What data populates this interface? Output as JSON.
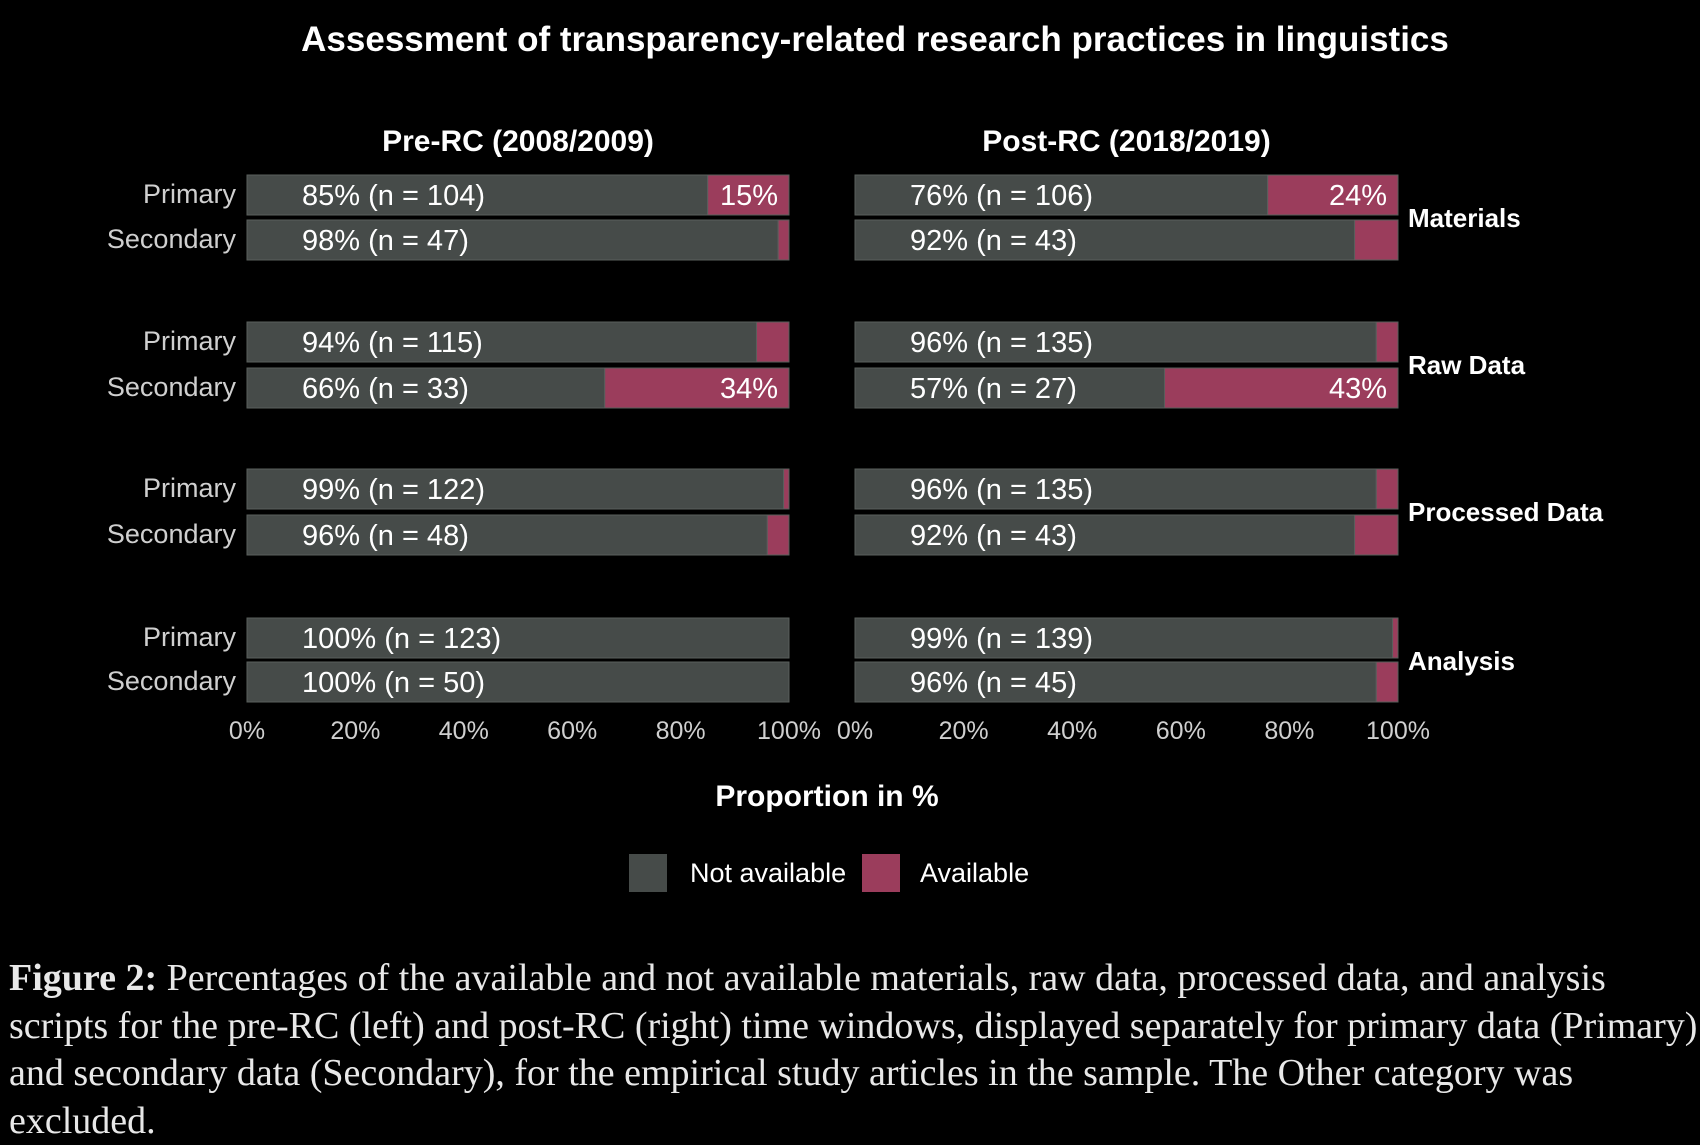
{
  "chart_data": {
    "type": "bar",
    "orientation": "horizontal-stacked-100",
    "title": "Assessment of transparency-related research practices in linguistics",
    "xlabel": "Proportion in %",
    "xlim": [
      0,
      100
    ],
    "xticks": [
      "0%",
      "20%",
      "40%",
      "60%",
      "80%",
      "100%"
    ],
    "legend": {
      "position": "bottom",
      "entries": [
        "Not available",
        "Available"
      ]
    },
    "colors": {
      "Not available": "#464b49",
      "Available": "#9b3d5c"
    },
    "facets": [
      "Materials",
      "Raw Data",
      "Processed Data",
      "Analysis"
    ],
    "rows": [
      "Primary",
      "Secondary"
    ],
    "panels": [
      {
        "title": "Pre-RC (2008/2009)",
        "data": [
          {
            "facet": "Materials",
            "row": "Primary",
            "not_available": 85,
            "available": 15,
            "n": 104,
            "label": "85% (n = 104)",
            "avail_label": "15%"
          },
          {
            "facet": "Materials",
            "row": "Secondary",
            "not_available": 98,
            "available": 2,
            "n": 47,
            "label": "98% (n = 47)",
            "avail_label": ""
          },
          {
            "facet": "Raw Data",
            "row": "Primary",
            "not_available": 94,
            "available": 6,
            "n": 115,
            "label": "94% (n = 115)",
            "avail_label": ""
          },
          {
            "facet": "Raw Data",
            "row": "Secondary",
            "not_available": 66,
            "available": 34,
            "n": 33,
            "label": "66% (n = 33)",
            "avail_label": "34%"
          },
          {
            "facet": "Processed Data",
            "row": "Primary",
            "not_available": 99,
            "available": 1,
            "n": 122,
            "label": "99% (n = 122)",
            "avail_label": ""
          },
          {
            "facet": "Processed Data",
            "row": "Secondary",
            "not_available": 96,
            "available": 4,
            "n": 48,
            "label": "96% (n = 48)",
            "avail_label": ""
          },
          {
            "facet": "Analysis",
            "row": "Primary",
            "not_available": 100,
            "available": 0,
            "n": 123,
            "label": "100% (n = 123)",
            "avail_label": ""
          },
          {
            "facet": "Analysis",
            "row": "Secondary",
            "not_available": 100,
            "available": 0,
            "n": 50,
            "label": "100% (n = 50)",
            "avail_label": ""
          }
        ]
      },
      {
        "title": "Post-RC (2018/2019)",
        "data": [
          {
            "facet": "Materials",
            "row": "Primary",
            "not_available": 76,
            "available": 24,
            "n": 106,
            "label": "76% (n = 106)",
            "avail_label": "24%"
          },
          {
            "facet": "Materials",
            "row": "Secondary",
            "not_available": 92,
            "available": 8,
            "n": 43,
            "label": "92% (n = 43)",
            "avail_label": ""
          },
          {
            "facet": "Raw Data",
            "row": "Primary",
            "not_available": 96,
            "available": 4,
            "n": 135,
            "label": "96% (n = 135)",
            "avail_label": ""
          },
          {
            "facet": "Raw Data",
            "row": "Secondary",
            "not_available": 57,
            "available": 43,
            "n": 27,
            "label": "57% (n = 27)",
            "avail_label": "43%"
          },
          {
            "facet": "Processed Data",
            "row": "Primary",
            "not_available": 96,
            "available": 4,
            "n": 135,
            "label": "96% (n = 135)",
            "avail_label": ""
          },
          {
            "facet": "Processed Data",
            "row": "Secondary",
            "not_available": 92,
            "available": 8,
            "n": 43,
            "label": "92% (n = 43)",
            "avail_label": ""
          },
          {
            "facet": "Analysis",
            "row": "Primary",
            "not_available": 99,
            "available": 1,
            "n": 139,
            "label": "99% (n = 139)",
            "avail_label": ""
          },
          {
            "facet": "Analysis",
            "row": "Secondary",
            "not_available": 96,
            "available": 4,
            "n": 45,
            "label": "96% (n = 45)",
            "avail_label": ""
          }
        ]
      }
    ]
  },
  "caption": {
    "label": "Figure 2:",
    "text": " Percentages of the available and not available materials, raw data, processed data, and analysis scripts for the pre-RC (left) and post-RC (right) time windows, displayed separately for primary data (Primary) and secondary data (Secondary), for the empirical study articles in the sample. The Other category was excluded."
  }
}
